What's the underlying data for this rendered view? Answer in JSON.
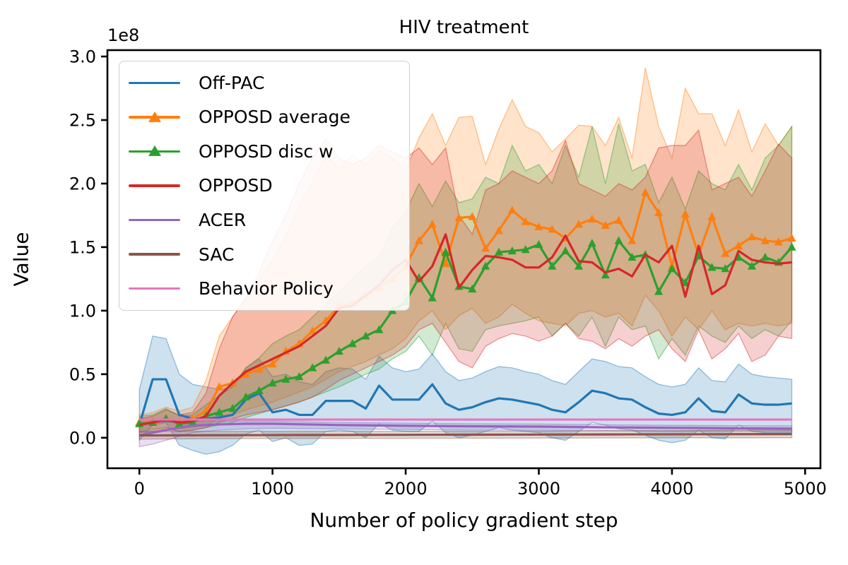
{
  "figure": {
    "title": "HIV treatment",
    "xlabel": "Number of policy gradient step",
    "ylabel": "Value",
    "offset_label": "1e8"
  },
  "chart_data": {
    "type": "line",
    "title": "HIV treatment",
    "xlabel": "Number of policy gradient step",
    "ylabel": "Value",
    "y_offset_label": "1e8",
    "y_multiplier": 100000000,
    "xlim": [
      -240,
      5115
    ],
    "ylim": [
      -0.24,
      3.05
    ],
    "x_tick_values": [
      0,
      1000,
      2000,
      3000,
      4000,
      5000
    ],
    "x_tick_labels": [
      "0",
      "1000",
      "2000",
      "3000",
      "4000",
      "5000"
    ],
    "y_tick_values": [
      0.0,
      0.5,
      1.0,
      1.5,
      2.0,
      2.5,
      3.0
    ],
    "y_tick_labels": [
      "0.0",
      "0.5",
      "1.0",
      "1.5",
      "2.0",
      "2.5",
      "3.0"
    ],
    "grid": false,
    "legend_position": "upper left",
    "x": [
      0,
      100,
      200,
      300,
      400,
      500,
      600,
      700,
      800,
      900,
      1000,
      1100,
      1200,
      1300,
      1400,
      1500,
      1600,
      1700,
      1800,
      1900,
      2000,
      2100,
      2200,
      2300,
      2400,
      2500,
      2600,
      2700,
      2800,
      2900,
      3000,
      3100,
      3200,
      3300,
      3400,
      3500,
      3600,
      3700,
      3800,
      3900,
      4000,
      4100,
      4200,
      4300,
      4400,
      4500,
      4600,
      4700,
      4800,
      4900
    ],
    "series": [
      {
        "name": "Off-PAC",
        "color": "#1f77b4",
        "marker": null,
        "values": [
          0.1,
          0.46,
          0.46,
          0.18,
          0.15,
          0.15,
          0.16,
          0.18,
          0.3,
          0.35,
          0.2,
          0.22,
          0.18,
          0.18,
          0.29,
          0.29,
          0.29,
          0.23,
          0.41,
          0.3,
          0.3,
          0.3,
          0.42,
          0.27,
          0.22,
          0.24,
          0.28,
          0.31,
          0.3,
          0.28,
          0.26,
          0.22,
          0.2,
          0.28,
          0.37,
          0.35,
          0.31,
          0.3,
          0.24,
          0.19,
          0.18,
          0.2,
          0.31,
          0.21,
          0.2,
          0.34,
          0.27,
          0.26,
          0.26,
          0.27
        ],
        "upper": [
          0.38,
          0.8,
          0.78,
          0.5,
          0.42,
          0.4,
          0.38,
          0.4,
          0.55,
          0.62,
          0.48,
          0.5,
          0.44,
          0.42,
          0.52,
          0.55,
          0.54,
          0.46,
          0.64,
          0.55,
          0.52,
          0.54,
          0.66,
          0.52,
          0.45,
          0.47,
          0.52,
          0.56,
          0.55,
          0.52,
          0.5,
          0.45,
          0.42,
          0.52,
          0.62,
          0.6,
          0.56,
          0.55,
          0.48,
          0.42,
          0.4,
          0.42,
          0.55,
          0.45,
          0.44,
          0.58,
          0.5,
          0.48,
          0.47,
          0.46
        ],
        "lower": [
          -0.02,
          0.1,
          0.12,
          -0.06,
          -0.1,
          -0.13,
          -0.11,
          -0.06,
          0.03,
          0.06,
          -0.03,
          0.0,
          -0.06,
          -0.05,
          0.05,
          0.06,
          0.05,
          0.0,
          0.11,
          0.06,
          0.05,
          0.05,
          0.13,
          0.04,
          0.0,
          0.02,
          0.05,
          0.08,
          0.06,
          0.05,
          0.04,
          0.0,
          -0.02,
          0.05,
          0.12,
          0.1,
          0.07,
          0.06,
          0.02,
          -0.02,
          -0.04,
          -0.02,
          0.06,
          0.0,
          -0.01,
          0.1,
          0.05,
          0.04,
          0.04,
          0.04
        ]
      },
      {
        "name": "OPPOSD average",
        "color": "#ff7f0e",
        "marker": "triangle-up",
        "values": [
          0.12,
          0.13,
          0.15,
          0.13,
          0.15,
          0.21,
          0.4,
          0.43,
          0.5,
          0.54,
          0.58,
          0.68,
          0.74,
          0.84,
          0.92,
          1.04,
          1.06,
          1.12,
          1.18,
          1.25,
          1.35,
          1.55,
          1.68,
          1.37,
          1.73,
          1.74,
          1.49,
          1.63,
          1.79,
          1.7,
          1.66,
          1.64,
          1.57,
          1.68,
          1.72,
          1.67,
          1.71,
          1.55,
          1.93,
          1.77,
          1.35,
          1.76,
          1.44,
          1.74,
          1.45,
          1.51,
          1.58,
          1.55,
          1.54,
          1.57
        ],
        "upper": [
          0.18,
          0.2,
          0.24,
          0.21,
          0.24,
          0.45,
          0.8,
          0.95,
          1.1,
          1.25,
          1.4,
          1.58,
          1.82,
          2.02,
          2.22,
          2.12,
          2.22,
          2.15,
          2.26,
          2.2,
          2.1,
          2.36,
          2.55,
          2.3,
          2.52,
          2.53,
          2.15,
          2.43,
          2.66,
          2.45,
          2.4,
          2.25,
          2.35,
          2.46,
          2.45,
          2.3,
          2.52,
          2.2,
          2.91,
          2.45,
          2.2,
          2.75,
          2.55,
          2.55,
          2.3,
          2.58,
          2.25,
          2.47,
          2.3,
          2.45
        ],
        "lower": [
          0.06,
          0.07,
          0.08,
          0.07,
          0.08,
          0.1,
          0.15,
          0.18,
          0.22,
          0.25,
          0.28,
          0.32,
          0.36,
          0.4,
          0.46,
          0.52,
          0.56,
          0.6,
          0.65,
          0.7,
          0.78,
          0.92,
          1.0,
          0.85,
          0.96,
          1.02,
          0.9,
          0.95,
          1.05,
          0.98,
          0.92,
          0.9,
          0.88,
          0.98,
          1.0,
          0.95,
          0.98,
          0.88,
          1.12,
          1.0,
          0.8,
          0.95,
          0.85,
          1.0,
          0.85,
          0.9,
          0.88,
          0.9,
          0.88,
          0.9
        ]
      },
      {
        "name": "OPPOSD disc w",
        "color": "#2ca02c",
        "marker": "triangle-up",
        "values": [
          0.11,
          0.12,
          0.15,
          0.11,
          0.12,
          0.17,
          0.2,
          0.23,
          0.32,
          0.37,
          0.43,
          0.46,
          0.48,
          0.55,
          0.61,
          0.68,
          0.74,
          0.8,
          0.85,
          1.0,
          1.07,
          1.26,
          1.1,
          1.46,
          1.19,
          1.17,
          1.35,
          1.46,
          1.47,
          1.48,
          1.52,
          1.35,
          1.47,
          1.35,
          1.53,
          1.28,
          1.55,
          1.42,
          1.44,
          1.15,
          1.33,
          1.22,
          1.43,
          1.34,
          1.33,
          1.42,
          1.35,
          1.42,
          1.38,
          1.5
        ],
        "upper": [
          0.17,
          0.18,
          0.23,
          0.17,
          0.18,
          0.26,
          0.33,
          0.4,
          0.55,
          0.63,
          0.74,
          0.8,
          0.85,
          0.95,
          1.05,
          1.15,
          1.25,
          1.35,
          1.42,
          1.65,
          1.78,
          2.0,
          1.82,
          2.02,
          1.85,
          1.88,
          2.05,
          2.0,
          2.3,
          2.1,
          2.15,
          2.0,
          2.3,
          2.05,
          2.45,
          2.0,
          2.47,
          2.1,
          2.15,
          1.85,
          2.05,
          1.8,
          2.1,
          2.0,
          1.95,
          2.15,
          1.95,
          2.2,
          2.3,
          2.45
        ],
        "lower": [
          0.05,
          0.06,
          0.08,
          0.05,
          0.06,
          0.08,
          0.1,
          0.12,
          0.16,
          0.19,
          0.22,
          0.25,
          0.28,
          0.32,
          0.36,
          0.4,
          0.45,
          0.5,
          0.54,
          0.62,
          0.68,
          0.8,
          0.65,
          0.9,
          0.7,
          0.68,
          0.85,
          0.88,
          0.9,
          0.92,
          0.95,
          0.8,
          0.9,
          0.8,
          0.95,
          0.72,
          0.95,
          0.85,
          0.88,
          0.62,
          0.78,
          0.65,
          0.88,
          0.8,
          0.75,
          0.88,
          0.78,
          0.85,
          0.8,
          0.92
        ]
      },
      {
        "name": "OPPOSD",
        "color": "#d62728",
        "marker": null,
        "values": [
          0.1,
          0.12,
          0.14,
          0.12,
          0.13,
          0.17,
          0.33,
          0.43,
          0.52,
          0.57,
          0.62,
          0.67,
          0.72,
          0.8,
          0.88,
          1.02,
          1.04,
          1.12,
          1.2,
          1.32,
          1.4,
          1.23,
          1.35,
          1.6,
          1.18,
          1.32,
          1.43,
          1.42,
          1.4,
          1.34,
          1.34,
          1.42,
          1.59,
          1.39,
          1.38,
          1.3,
          1.33,
          1.27,
          1.44,
          1.38,
          1.51,
          1.11,
          1.51,
          1.13,
          1.2,
          1.47,
          1.4,
          1.38,
          1.37,
          1.38
        ],
        "upper": [
          0.15,
          0.17,
          0.22,
          0.18,
          0.2,
          0.35,
          0.7,
          0.95,
          1.1,
          1.3,
          1.55,
          1.75,
          2.0,
          2.2,
          2.35,
          2.2,
          2.15,
          2.2,
          2.3,
          2.25,
          2.2,
          2.28,
          2.15,
          2.28,
          1.75,
          1.6,
          1.95,
          2.0,
          2.1,
          2.05,
          2.0,
          2.1,
          2.34,
          2.0,
          1.95,
          1.9,
          2.0,
          1.95,
          2.05,
          2.28,
          2.3,
          2.3,
          2.42,
          1.95,
          2.0,
          2.05,
          1.9,
          2.1,
          2.31,
          2.2
        ],
        "lower": [
          0.04,
          0.05,
          0.07,
          0.05,
          0.06,
          0.08,
          0.12,
          0.15,
          0.18,
          0.2,
          0.22,
          0.25,
          0.28,
          0.32,
          0.38,
          0.45,
          0.5,
          0.55,
          0.6,
          0.65,
          0.72,
          0.85,
          0.9,
          0.75,
          0.6,
          0.55,
          0.72,
          0.78,
          0.82,
          0.8,
          0.76,
          0.8,
          0.9,
          0.78,
          0.76,
          0.7,
          0.78,
          0.72,
          0.8,
          0.85,
          0.7,
          0.6,
          0.85,
          0.62,
          0.7,
          0.82,
          0.6,
          0.65,
          0.8,
          0.78
        ]
      },
      {
        "name": "ACER",
        "color": "#9467bd",
        "marker": null,
        "x_override": [
          0,
          100,
          200,
          300,
          400,
          600,
          800,
          1000,
          1500,
          2000,
          2500,
          3000,
          3500,
          4000,
          4500,
          4900
        ],
        "values": [
          0.02,
          0.04,
          0.06,
          0.08,
          0.095,
          0.105,
          0.11,
          0.11,
          0.1,
          0.094,
          0.09,
          0.088,
          0.082,
          0.078,
          0.074,
          0.072
        ],
        "upper": [
          0.1,
          0.11,
          0.12,
          0.125,
          0.13,
          0.13,
          0.13,
          0.13,
          0.12,
          0.115,
          0.11,
          0.108,
          0.102,
          0.098,
          0.095,
          0.095
        ],
        "lower": [
          -0.07,
          -0.05,
          -0.02,
          0.01,
          0.04,
          0.06,
          0.07,
          0.075,
          0.07,
          0.065,
          0.06,
          0.058,
          0.055,
          0.05,
          0.05,
          0.05
        ]
      },
      {
        "name": "SAC",
        "color": "#8c564b",
        "marker": null,
        "x_override": [
          0,
          500,
          1000,
          1500,
          2000,
          2500,
          3000,
          3500,
          4000,
          4500,
          4900
        ],
        "values": [
          0.018,
          0.02,
          0.021,
          0.022,
          0.023,
          0.024,
          0.025,
          0.026,
          0.027,
          0.028,
          0.029
        ],
        "upper": [
          0.05,
          0.05,
          0.05,
          0.05,
          0.05,
          0.05,
          0.05,
          0.055,
          0.055,
          0.06,
          0.06
        ],
        "lower": [
          -0.01,
          -0.008,
          -0.006,
          -0.005,
          -0.004,
          -0.003,
          -0.002,
          -0.001,
          0.0,
          0.0,
          0.0
        ]
      },
      {
        "name": "Behavior Policy",
        "color": "#e377c2",
        "marker": null,
        "x_override": [
          0,
          4900
        ],
        "values": [
          0.143,
          0.143
        ],
        "upper": null,
        "lower": null
      }
    ]
  },
  "layout_colors": {
    "frame": "#000000",
    "legend_border": "#cfcfcf"
  }
}
